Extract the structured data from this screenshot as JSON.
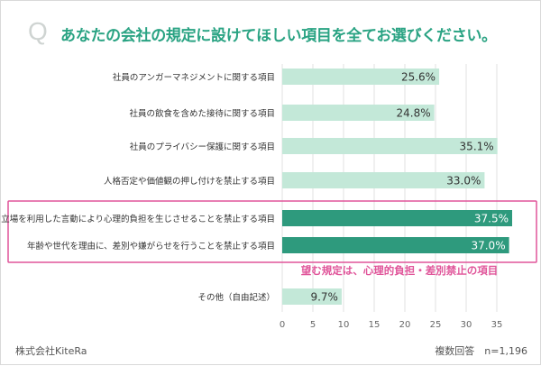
{
  "header": {
    "q_mark": "Q",
    "question": "あなたの会社の規定に設けてほしい項目を全てお選びください。"
  },
  "chart_data": {
    "type": "bar",
    "orientation": "horizontal",
    "categories": [
      "社員のアンガーマネジメントに関する項目",
      "社員の飲食を含めた接待に関する項目",
      "社員のプライバシー保護に関する項目",
      "人格否定や価値観の押し付けを禁止する項目",
      "立場を利用した言動により心理的負担を生じさせることを禁止する項目",
      "年齢や世代を理由に、差別や嫌がらせを行うことを禁止する項目",
      "その他（自由記述）"
    ],
    "values": [
      25.6,
      24.8,
      35.1,
      33.0,
      37.5,
      37.0,
      9.7
    ],
    "value_labels": [
      "25.6%",
      "24.8%",
      "35.1%",
      "33.0%",
      "37.5%",
      "37.0%",
      "9.7%"
    ],
    "highlighted": [
      false,
      false,
      false,
      false,
      true,
      true,
      false
    ],
    "xlim": [
      0,
      37.5
    ],
    "xticks": [
      0,
      5,
      10,
      15,
      20,
      25,
      30,
      35
    ],
    "grid": true,
    "annotation": "望む規定は、心理的負担・差別禁止の項目",
    "colors": {
      "bar": "#c3e8d8",
      "bar_highlight": "#2e9a7d",
      "highlight_box": "#e0559a",
      "annotation": "#e0559a",
      "grid": "#e0e0e0"
    }
  },
  "footer": {
    "company": "株式会社KiteRa",
    "sample": "複数回答　n=1,196"
  }
}
